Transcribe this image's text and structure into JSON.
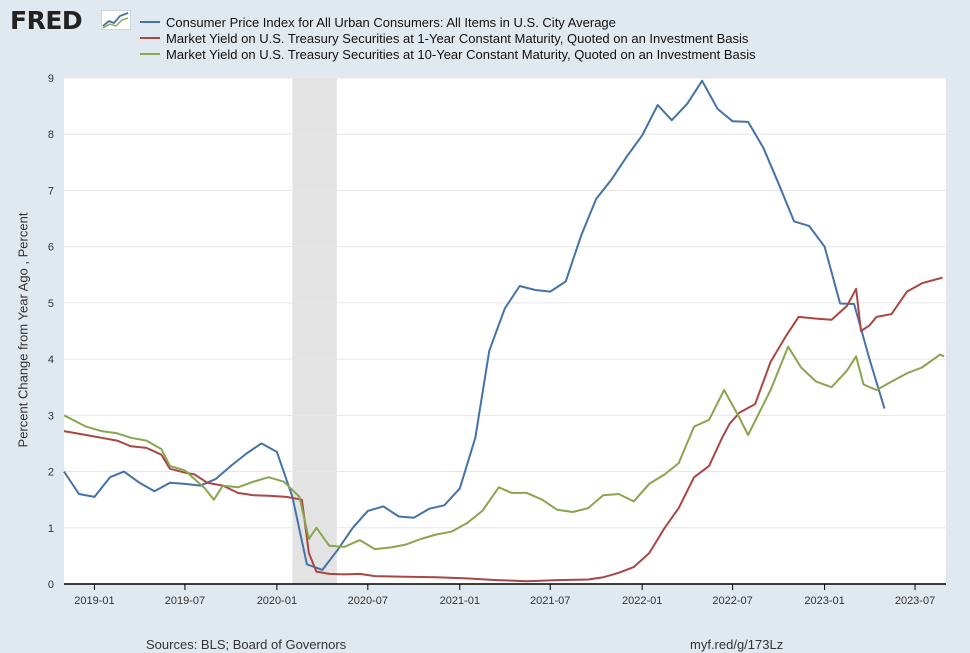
{
  "header": {
    "logo_text": "FRED",
    "logo_mark": "chart-line-icon"
  },
  "footer": {
    "sources": "Sources: BLS; Board of Governors",
    "link": "myf.red/g/173Lz"
  },
  "colors": {
    "cpi": "#4572a7",
    "one_year": "#aa4643",
    "ten_year": "#89a54e",
    "recession": "#e3e3e3",
    "plot_bg": "#ffffff",
    "frame_bg": "#e1e9f0"
  },
  "chart_data": {
    "type": "line",
    "ylabel": "Percent Change from Year Ago , Percent",
    "ylim": [
      0,
      9
    ],
    "yticks": [
      "0",
      "1",
      "2",
      "3",
      "4",
      "5",
      "6",
      "7",
      "8",
      "9"
    ],
    "xlim": [
      "2018-11-01",
      "2023-09-01"
    ],
    "xticks": [
      "2019-01",
      "2019-07",
      "2020-01",
      "2020-07",
      "2021-01",
      "2021-07",
      "2022-01",
      "2022-07",
      "2023-01",
      "2023-07"
    ],
    "grid": true,
    "legend_placement": "top",
    "recession_shading": [
      {
        "start": "2020-02-01",
        "end": "2020-04-30"
      }
    ],
    "series": [
      {
        "name": "Consumer Price Index for All Urban Consumers: All Items in U.S. City Average",
        "color_key": "cpi",
        "points": [
          [
            "2018-11-01",
            2.0
          ],
          [
            "2018-12-01",
            1.6
          ],
          [
            "2019-01-01",
            1.55
          ],
          [
            "2019-02-01",
            1.9
          ],
          [
            "2019-03-01",
            2.0
          ],
          [
            "2019-04-01",
            1.8
          ],
          [
            "2019-05-01",
            1.65
          ],
          [
            "2019-06-01",
            1.8
          ],
          [
            "2019-07-01",
            1.78
          ],
          [
            "2019-08-01",
            1.75
          ],
          [
            "2019-09-01",
            1.87
          ],
          [
            "2019-10-01",
            2.1
          ],
          [
            "2019-11-01",
            2.32
          ],
          [
            "2019-12-01",
            2.5
          ],
          [
            "2020-01-01",
            2.35
          ],
          [
            "2020-02-01",
            1.55
          ],
          [
            "2020-03-01",
            0.35
          ],
          [
            "2020-04-01",
            0.25
          ],
          [
            "2020-05-01",
            0.6
          ],
          [
            "2020-06-01",
            1.0
          ],
          [
            "2020-07-01",
            1.3
          ],
          [
            "2020-08-01",
            1.38
          ],
          [
            "2020-09-01",
            1.2
          ],
          [
            "2020-10-01",
            1.18
          ],
          [
            "2020-11-01",
            1.34
          ],
          [
            "2020-12-01",
            1.4
          ],
          [
            "2021-01-01",
            1.7
          ],
          [
            "2021-02-01",
            2.6
          ],
          [
            "2021-03-01",
            4.15
          ],
          [
            "2021-04-01",
            4.9
          ],
          [
            "2021-05-01",
            5.3
          ],
          [
            "2021-06-01",
            5.23
          ],
          [
            "2021-07-01",
            5.2
          ],
          [
            "2021-08-01",
            5.38
          ],
          [
            "2021-09-01",
            6.2
          ],
          [
            "2021-10-01",
            6.85
          ],
          [
            "2021-11-01",
            7.2
          ],
          [
            "2021-12-01",
            7.6
          ],
          [
            "2022-01-01",
            7.98
          ],
          [
            "2022-02-01",
            8.52
          ],
          [
            "2022-03-01",
            8.25
          ],
          [
            "2022-04-01",
            8.54
          ],
          [
            "2022-05-01",
            8.95
          ],
          [
            "2022-06-01",
            8.45
          ],
          [
            "2022-07-01",
            8.23
          ],
          [
            "2022-08-01",
            8.22
          ],
          [
            "2022-09-01",
            7.75
          ],
          [
            "2022-10-01",
            7.12
          ],
          [
            "2022-11-01",
            6.45
          ],
          [
            "2022-12-01",
            6.37
          ],
          [
            "2023-01-01",
            6.0
          ],
          [
            "2023-02-01",
            4.99
          ],
          [
            "2023-03-01",
            4.98
          ],
          [
            "2023-04-01",
            4.0
          ],
          [
            "2023-05-01",
            3.12
          ]
        ]
      },
      {
        "name": "Market Yield on U.S. Treasury Securities at 1-Year Constant Maturity, Quoted on an Investment Basis",
        "color_key": "one_year",
        "points": [
          [
            "2018-11-01",
            2.72
          ],
          [
            "2018-12-15",
            2.65
          ],
          [
            "2019-01-15",
            2.6
          ],
          [
            "2019-02-15",
            2.55
          ],
          [
            "2019-03-15",
            2.45
          ],
          [
            "2019-04-15",
            2.42
          ],
          [
            "2019-05-15",
            2.3
          ],
          [
            "2019-06-01",
            2.05
          ],
          [
            "2019-07-01",
            1.98
          ],
          [
            "2019-07-20",
            1.95
          ],
          [
            "2019-08-15",
            1.8
          ],
          [
            "2019-09-15",
            1.75
          ],
          [
            "2019-10-15",
            1.62
          ],
          [
            "2019-11-15",
            1.58
          ],
          [
            "2019-12-15",
            1.57
          ],
          [
            "2020-01-20",
            1.55
          ],
          [
            "2020-02-20",
            1.5
          ],
          [
            "2020-03-05",
            0.55
          ],
          [
            "2020-03-20",
            0.22
          ],
          [
            "2020-04-15",
            0.18
          ],
          [
            "2020-05-15",
            0.17
          ],
          [
            "2020-06-15",
            0.18
          ],
          [
            "2020-07-15",
            0.14
          ],
          [
            "2020-09-15",
            0.13
          ],
          [
            "2020-11-15",
            0.12
          ],
          [
            "2021-01-15",
            0.1
          ],
          [
            "2021-03-15",
            0.07
          ],
          [
            "2021-05-15",
            0.05
          ],
          [
            "2021-07-15",
            0.07
          ],
          [
            "2021-09-15",
            0.08
          ],
          [
            "2021-10-15",
            0.12
          ],
          [
            "2021-11-15",
            0.2
          ],
          [
            "2021-12-15",
            0.3
          ],
          [
            "2022-01-15",
            0.55
          ],
          [
            "2022-02-15",
            1.0
          ],
          [
            "2022-03-15",
            1.35
          ],
          [
            "2022-04-15",
            1.9
          ],
          [
            "2022-05-15",
            2.1
          ],
          [
            "2022-06-10",
            2.6
          ],
          [
            "2022-06-25",
            2.85
          ],
          [
            "2022-07-15",
            3.05
          ],
          [
            "2022-08-15",
            3.2
          ],
          [
            "2022-09-15",
            3.95
          ],
          [
            "2022-10-15",
            4.4
          ],
          [
            "2022-11-10",
            4.75
          ],
          [
            "2022-12-15",
            4.72
          ],
          [
            "2023-01-15",
            4.7
          ],
          [
            "2023-02-15",
            4.95
          ],
          [
            "2023-03-05",
            5.25
          ],
          [
            "2023-03-15",
            4.5
          ],
          [
            "2023-04-01",
            4.6
          ],
          [
            "2023-04-15",
            4.75
          ],
          [
            "2023-05-15",
            4.8
          ],
          [
            "2023-06-15",
            5.2
          ],
          [
            "2023-07-15",
            5.35
          ],
          [
            "2023-08-25",
            5.45
          ]
        ]
      },
      {
        "name": "Market Yield on U.S. Treasury Securities at 10-Year Constant Maturity, Quoted on an Investment Basis",
        "color_key": "ten_year",
        "points": [
          [
            "2018-11-01",
            3.0
          ],
          [
            "2018-12-15",
            2.8
          ],
          [
            "2019-01-15",
            2.72
          ],
          [
            "2019-02-15",
            2.68
          ],
          [
            "2019-03-15",
            2.6
          ],
          [
            "2019-04-15",
            2.55
          ],
          [
            "2019-05-15",
            2.4
          ],
          [
            "2019-06-01",
            2.1
          ],
          [
            "2019-07-01",
            2.02
          ],
          [
            "2019-08-10",
            1.7
          ],
          [
            "2019-08-28",
            1.5
          ],
          [
            "2019-09-15",
            1.75
          ],
          [
            "2019-10-15",
            1.72
          ],
          [
            "2019-11-15",
            1.82
          ],
          [
            "2019-12-15",
            1.9
          ],
          [
            "2020-01-15",
            1.82
          ],
          [
            "2020-02-15",
            1.55
          ],
          [
            "2020-03-05",
            0.8
          ],
          [
            "2020-03-20",
            1.0
          ],
          [
            "2020-04-15",
            0.68
          ],
          [
            "2020-05-15",
            0.66
          ],
          [
            "2020-06-15",
            0.78
          ],
          [
            "2020-07-15",
            0.62
          ],
          [
            "2020-08-15",
            0.65
          ],
          [
            "2020-09-15",
            0.7
          ],
          [
            "2020-10-15",
            0.8
          ],
          [
            "2020-11-15",
            0.88
          ],
          [
            "2020-12-15",
            0.93
          ],
          [
            "2021-01-15",
            1.08
          ],
          [
            "2021-02-15",
            1.3
          ],
          [
            "2021-03-20",
            1.72
          ],
          [
            "2021-04-15",
            1.62
          ],
          [
            "2021-05-15",
            1.62
          ],
          [
            "2021-06-15",
            1.5
          ],
          [
            "2021-07-15",
            1.32
          ],
          [
            "2021-08-15",
            1.28
          ],
          [
            "2021-09-15",
            1.35
          ],
          [
            "2021-10-15",
            1.58
          ],
          [
            "2021-11-15",
            1.6
          ],
          [
            "2021-12-15",
            1.47
          ],
          [
            "2022-01-15",
            1.78
          ],
          [
            "2022-02-15",
            1.95
          ],
          [
            "2022-03-15",
            2.15
          ],
          [
            "2022-04-15",
            2.8
          ],
          [
            "2022-05-15",
            2.92
          ],
          [
            "2022-06-14",
            3.45
          ],
          [
            "2022-07-15",
            2.95
          ],
          [
            "2022-08-01",
            2.65
          ],
          [
            "2022-08-15",
            2.9
          ],
          [
            "2022-09-15",
            3.45
          ],
          [
            "2022-10-20",
            4.22
          ],
          [
            "2022-11-15",
            3.85
          ],
          [
            "2022-12-15",
            3.6
          ],
          [
            "2023-01-15",
            3.5
          ],
          [
            "2023-02-15",
            3.8
          ],
          [
            "2023-03-05",
            4.05
          ],
          [
            "2023-03-20",
            3.55
          ],
          [
            "2023-04-15",
            3.45
          ],
          [
            "2023-05-15",
            3.6
          ],
          [
            "2023-06-15",
            3.75
          ],
          [
            "2023-07-15",
            3.85
          ],
          [
            "2023-08-20",
            4.08
          ],
          [
            "2023-08-28",
            4.05
          ]
        ]
      }
    ]
  }
}
